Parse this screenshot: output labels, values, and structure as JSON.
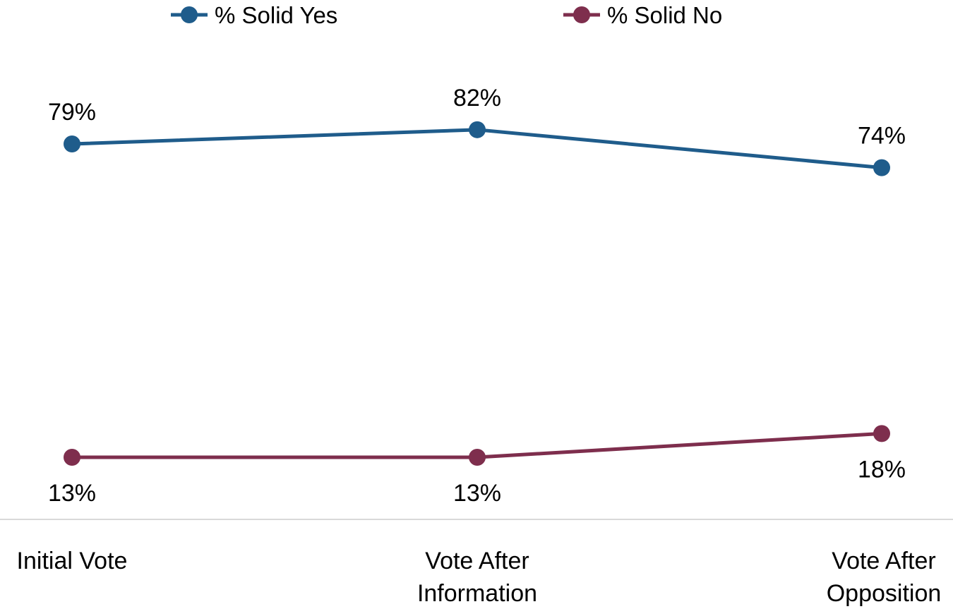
{
  "chart_data": {
    "type": "line",
    "categories": [
      [
        "Initial Vote"
      ],
      [
        "Vote After",
        "Information"
      ],
      [
        "Vote After",
        "Opposition"
      ]
    ],
    "series": [
      {
        "name": "% Solid Yes",
        "values": [
          79,
          82,
          74
        ],
        "labels": [
          "79%",
          "82%",
          "74%"
        ],
        "color": "#1f5c8b",
        "label_position": "above"
      },
      {
        "name": "% Solid No",
        "values": [
          13,
          13,
          18
        ],
        "labels": [
          "13%",
          "13%",
          "18%"
        ],
        "color": "#7e2e4d",
        "label_position": "below"
      }
    ],
    "legend_position": "top",
    "grid": false,
    "axis_line_color": "#d9d9d9"
  }
}
